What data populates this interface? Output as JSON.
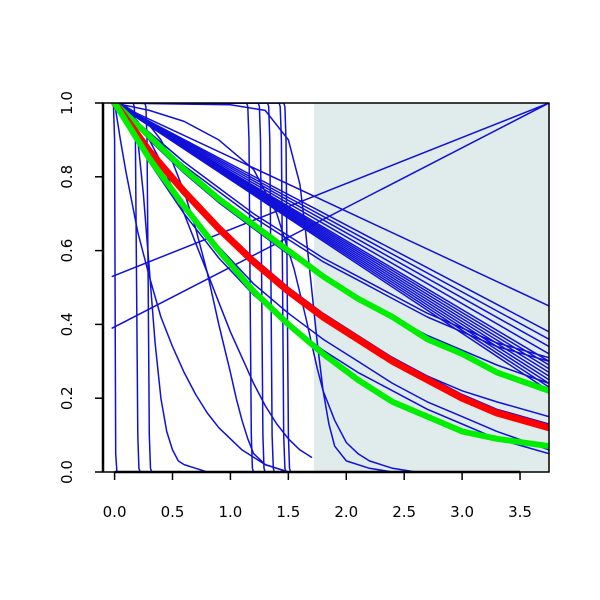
{
  "chart_data": {
    "type": "line",
    "title": "",
    "xlabel": "",
    "ylabel": "",
    "xlim": [
      -0.1,
      3.75
    ],
    "ylim": [
      0.0,
      1.0
    ],
    "x_ticks": [
      0.0,
      0.5,
      1.0,
      1.5,
      2.0,
      2.5,
      3.0,
      3.5
    ],
    "x_tick_labels": [
      "0.0",
      "0.5",
      "1.0",
      "1.5",
      "2.0",
      "2.5",
      "3.0",
      "3.5"
    ],
    "y_ticks": [
      0.0,
      0.2,
      0.4,
      0.6,
      0.8,
      1.0
    ],
    "y_tick_labels": [
      "0.0",
      "0.2",
      "0.4",
      "0.6",
      "0.8",
      "1.0"
    ],
    "grid": false,
    "legend": "none",
    "shaded_region": {
      "x_start": 1.72,
      "x_end": 3.75,
      "color": "#e0ecec"
    },
    "colors": {
      "blue": "#1010d8",
      "red": "#ff0000",
      "green": "#00ee00",
      "shade": "#e0ecec"
    },
    "series": [
      {
        "color": "blue",
        "width": 1.5,
        "x": [
          0,
          3.75
        ],
        "y": [
          1.0,
          0.45
        ]
      },
      {
        "color": "blue",
        "width": 1.5,
        "x": [
          0,
          3.75
        ],
        "y": [
          1.0,
          0.38
        ]
      },
      {
        "color": "blue",
        "width": 1.5,
        "x": [
          0,
          3.75
        ],
        "y": [
          1.0,
          0.36
        ]
      },
      {
        "color": "blue",
        "width": 1.5,
        "x": [
          0,
          3.75
        ],
        "y": [
          1.0,
          0.34
        ]
      },
      {
        "color": "blue",
        "width": 1.5,
        "x": [
          0,
          3.75
        ],
        "y": [
          1.0,
          0.32
        ]
      },
      {
        "color": "blue",
        "width": 1.5,
        "x": [
          0,
          3.75
        ],
        "y": [
          1.0,
          0.3
        ]
      },
      {
        "color": "blue",
        "width": 1.5,
        "x": [
          0,
          3.75
        ],
        "y": [
          1.0,
          0.29
        ]
      },
      {
        "color": "blue",
        "width": 1.5,
        "x": [
          0,
          3.75
        ],
        "y": [
          1.0,
          0.28
        ]
      },
      {
        "color": "blue",
        "width": 1.5,
        "x": [
          0,
          3.75
        ],
        "y": [
          1.0,
          0.27
        ]
      },
      {
        "color": "blue",
        "width": 1.5,
        "x": [
          0,
          3.75
        ],
        "y": [
          1.0,
          0.26
        ]
      },
      {
        "color": "blue",
        "width": 1.5,
        "x": [
          0,
          3.75
        ],
        "y": [
          1.0,
          0.25
        ]
      },
      {
        "color": "blue",
        "width": 1.5,
        "x": [
          0,
          3.75
        ],
        "y": [
          1.0,
          0.24
        ]
      },
      {
        "color": "blue",
        "width": 1.5,
        "x": [
          0,
          3.75
        ],
        "y": [
          1.0,
          0.23
        ]
      },
      {
        "color": "blue",
        "width": 1.5,
        "x": [
          0,
          3.75
        ],
        "y": [
          1.0,
          0.22
        ]
      },
      {
        "color": "blue",
        "width": 1.5,
        "x": [
          0,
          0.3,
          0.6,
          0.9,
          1.2,
          1.5,
          1.8,
          2.1,
          2.4,
          2.7,
          3.0,
          3.3,
          3.75
        ],
        "y": [
          1.0,
          0.92,
          0.84,
          0.77,
          0.7,
          0.64,
          0.58,
          0.53,
          0.48,
          0.43,
          0.39,
          0.35,
          0.31
        ]
      },
      {
        "color": "blue",
        "width": 1.5,
        "x": [
          0,
          0.3,
          0.6,
          0.9,
          1.2,
          1.5,
          1.8,
          2.1,
          2.4,
          2.7,
          3.0,
          3.3,
          3.75
        ],
        "y": [
          1.0,
          0.91,
          0.83,
          0.76,
          0.69,
          0.63,
          0.57,
          0.52,
          0.47,
          0.42,
          0.38,
          0.34,
          0.3
        ]
      },
      {
        "color": "blue",
        "width": 1.5,
        "x": [
          0,
          0.3,
          0.6,
          0.9,
          1.2,
          1.5,
          1.8,
          2.1,
          2.4,
          2.7,
          3.0,
          3.3,
          3.75
        ],
        "y": [
          1.0,
          0.9,
          0.81,
          0.73,
          0.66,
          0.59,
          0.53,
          0.47,
          0.42,
          0.37,
          0.33,
          0.29,
          0.24
        ]
      },
      {
        "color": "blue",
        "width": 1.5,
        "x": [
          0,
          0.3,
          0.6,
          0.9,
          1.2,
          1.5,
          1.8,
          2.1,
          2.4,
          2.7,
          3.0,
          3.3,
          3.75
        ],
        "y": [
          1.0,
          0.88,
          0.77,
          0.67,
          0.58,
          0.5,
          0.43,
          0.37,
          0.31,
          0.26,
          0.21,
          0.17,
          0.13
        ]
      },
      {
        "color": "blue",
        "width": 1.5,
        "x": [
          0,
          0.3,
          0.6,
          0.9,
          1.2,
          1.5,
          1.8,
          2.1,
          2.4,
          2.7,
          3.0,
          3.3,
          3.75
        ],
        "y": [
          1.0,
          0.87,
          0.76,
          0.66,
          0.57,
          0.49,
          0.42,
          0.36,
          0.31,
          0.26,
          0.22,
          0.19,
          0.15
        ]
      },
      {
        "color": "blue",
        "width": 1.5,
        "x": [
          0,
          0.3,
          0.6,
          0.9,
          1.2,
          1.5,
          1.8,
          2.1,
          2.4,
          2.7,
          3.0,
          3.3,
          3.75
        ],
        "y": [
          1.0,
          0.85,
          0.72,
          0.61,
          0.51,
          0.43,
          0.36,
          0.3,
          0.24,
          0.19,
          0.15,
          0.11,
          0.06
        ]
      },
      {
        "color": "blue",
        "width": 1.5,
        "x": [
          0,
          0.3,
          0.6,
          0.9,
          1.2,
          1.5,
          1.8,
          2.1,
          2.4,
          2.7,
          3.0,
          3.3,
          3.75
        ],
        "y": [
          1.0,
          0.84,
          0.7,
          0.58,
          0.48,
          0.4,
          0.33,
          0.27,
          0.22,
          0.17,
          0.13,
          0.09,
          0.05
        ]
      },
      {
        "color": "blue",
        "width": 1.5,
        "x": [
          -0.02,
          3.75
        ],
        "y": [
          0.39,
          1.0
        ]
      },
      {
        "color": "blue",
        "width": 1.5,
        "x": [
          -0.02,
          3.75
        ],
        "y": [
          0.53,
          1.0
        ]
      },
      {
        "color": "blue",
        "width": 1.5,
        "x": [
          0,
          0.05,
          0.1,
          0.15,
          0.2,
          0.3,
          0.4,
          0.5,
          0.6,
          0.7,
          0.8,
          0.9,
          1.0,
          1.1,
          1.2,
          1.3,
          1.4,
          1.5
        ],
        "y": [
          1.0,
          0.9,
          0.81,
          0.73,
          0.65,
          0.53,
          0.42,
          0.34,
          0.27,
          0.21,
          0.16,
          0.12,
          0.09,
          0.06,
          0.04,
          0.02,
          0.01,
          0.0
        ]
      },
      {
        "color": "blue",
        "width": 1.5,
        "x": [
          0,
          0.1,
          0.2,
          0.25,
          0.3,
          0.35,
          0.4,
          0.45,
          0.5,
          0.55,
          0.6,
          0.7,
          0.8,
          1.0
        ],
        "y": [
          1.0,
          0.99,
          0.9,
          0.75,
          0.55,
          0.35,
          0.2,
          0.11,
          0.06,
          0.03,
          0.02,
          0.01,
          0.0,
          0.0
        ]
      },
      {
        "color": "blue",
        "width": 1.5,
        "x": [
          0,
          0.1,
          0.2,
          0.3,
          0.4,
          0.5,
          0.6,
          0.7,
          0.8,
          0.9,
          1.0,
          1.05,
          1.1,
          1.15,
          1.2,
          1.3,
          1.4,
          1.5
        ],
        "y": [
          1.0,
          0.99,
          0.97,
          0.94,
          0.9,
          0.84,
          0.76,
          0.66,
          0.54,
          0.4,
          0.27,
          0.2,
          0.14,
          0.09,
          0.05,
          0.02,
          0.01,
          0.0
        ]
      },
      {
        "color": "blue",
        "width": 1.5,
        "x": [
          0,
          1.0,
          1.3,
          1.5,
          1.6,
          1.65,
          1.7,
          1.75,
          1.8,
          1.85,
          1.9,
          2.0,
          2.2,
          2.4,
          2.6
        ],
        "y": [
          1.0,
          0.995,
          0.98,
          0.9,
          0.78,
          0.65,
          0.5,
          0.35,
          0.22,
          0.13,
          0.07,
          0.03,
          0.01,
          0.0,
          0.0
        ]
      },
      {
        "color": "blue",
        "width": 1.5,
        "x": [
          0.0,
          0.3,
          0.6,
          0.9,
          1.2,
          1.4,
          1.55,
          1.65,
          1.7,
          1.75,
          1.8,
          1.9,
          2.0,
          2.1,
          2.2,
          2.4,
          2.6
        ],
        "y": [
          1.0,
          0.98,
          0.95,
          0.9,
          0.82,
          0.7,
          0.55,
          0.42,
          0.35,
          0.28,
          0.22,
          0.14,
          0.08,
          0.05,
          0.03,
          0.01,
          0.0
        ]
      },
      {
        "color": "blue",
        "width": 1.5,
        "x": [
          0,
          0.05,
          0.1,
          0.2,
          0.3,
          0.4,
          0.5,
          0.6,
          0.7,
          0.8,
          0.9,
          1.0,
          1.1,
          1.2,
          1.3,
          1.4,
          1.5,
          1.6,
          1.7
        ],
        "y": [
          1.0,
          0.99,
          0.98,
          0.95,
          0.9,
          0.84,
          0.77,
          0.7,
          0.62,
          0.54,
          0.46,
          0.38,
          0.31,
          0.24,
          0.18,
          0.13,
          0.09,
          0.06,
          0.04
        ]
      },
      {
        "color": "blue",
        "width": 1.5,
        "x": [
          0,
          0.16,
          0.17,
          0.18,
          0.19,
          0.2,
          0.21,
          0.22,
          0.25
        ],
        "y": [
          1.0,
          1.0,
          0.99,
          0.9,
          0.5,
          0.1,
          0.01,
          0.0,
          0.0
        ]
      },
      {
        "color": "blue",
        "width": 1.5,
        "x": [
          0,
          0.26,
          0.27,
          0.28,
          0.29,
          0.3,
          0.31,
          0.32,
          0.35
        ],
        "y": [
          1.0,
          1.0,
          0.99,
          0.9,
          0.5,
          0.1,
          0.01,
          0.0,
          0.0
        ]
      },
      {
        "color": "blue",
        "width": 1.5,
        "x": [
          0,
          1.14,
          1.15,
          1.16,
          1.17,
          1.18,
          1.19,
          1.2
        ],
        "y": [
          1.0,
          1.0,
          0.99,
          0.9,
          0.5,
          0.1,
          0.01,
          0.0
        ]
      },
      {
        "color": "blue",
        "width": 1.5,
        "x": [
          0,
          1.24,
          1.25,
          1.26,
          1.27,
          1.28,
          1.29,
          1.3
        ],
        "y": [
          1.0,
          1.0,
          0.99,
          0.9,
          0.5,
          0.1,
          0.01,
          0.0
        ]
      },
      {
        "color": "blue",
        "width": 1.5,
        "x": [
          0,
          1.32,
          1.33,
          1.34,
          1.35,
          1.36,
          1.37,
          1.38
        ],
        "y": [
          1.0,
          1.0,
          0.99,
          0.9,
          0.5,
          0.1,
          0.01,
          0.0
        ]
      },
      {
        "color": "blue",
        "width": 1.5,
        "x": [
          0,
          1.42,
          1.43,
          1.44,
          1.45,
          1.46,
          1.47,
          1.48
        ],
        "y": [
          1.0,
          1.0,
          0.99,
          0.9,
          0.5,
          0.1,
          0.01,
          0.0
        ]
      },
      {
        "color": "blue",
        "width": 1.5,
        "x": [
          0,
          1.46,
          1.47,
          1.48,
          1.49,
          1.5,
          1.51,
          1.52
        ],
        "y": [
          1.0,
          1.0,
          0.99,
          0.9,
          0.5,
          0.1,
          0.01,
          0.0
        ]
      },
      {
        "color": "blue",
        "width": 1.5,
        "x": [
          -0.01,
          0.0,
          0.005,
          0.01,
          0.02
        ],
        "y": [
          1.0,
          0.9,
          0.4,
          0.05,
          0.0
        ]
      },
      {
        "color": "green",
        "width": 6,
        "x": [
          0,
          0.3,
          0.6,
          0.9,
          1.2,
          1.5,
          1.8,
          2.1,
          2.4,
          2.7,
          3.0,
          3.3,
          3.75
        ],
        "y": [
          1.0,
          0.91,
          0.82,
          0.74,
          0.67,
          0.6,
          0.53,
          0.47,
          0.42,
          0.36,
          0.32,
          0.27,
          0.22
        ]
      },
      {
        "color": "red",
        "width": 7,
        "x": [
          0,
          0.3,
          0.6,
          0.9,
          1.2,
          1.5,
          1.8,
          2.1,
          2.4,
          2.7,
          3.0,
          3.3,
          3.75
        ],
        "y": [
          1.0,
          0.87,
          0.76,
          0.66,
          0.57,
          0.49,
          0.42,
          0.36,
          0.3,
          0.25,
          0.2,
          0.16,
          0.12
        ]
      },
      {
        "color": "green",
        "width": 6,
        "x": [
          0,
          0.3,
          0.6,
          0.9,
          1.2,
          1.5,
          1.8,
          2.1,
          2.4,
          2.7,
          3.0,
          3.3,
          3.75
        ],
        "y": [
          1.0,
          0.85,
          0.72,
          0.6,
          0.49,
          0.4,
          0.32,
          0.25,
          0.19,
          0.15,
          0.11,
          0.09,
          0.07
        ]
      }
    ]
  }
}
